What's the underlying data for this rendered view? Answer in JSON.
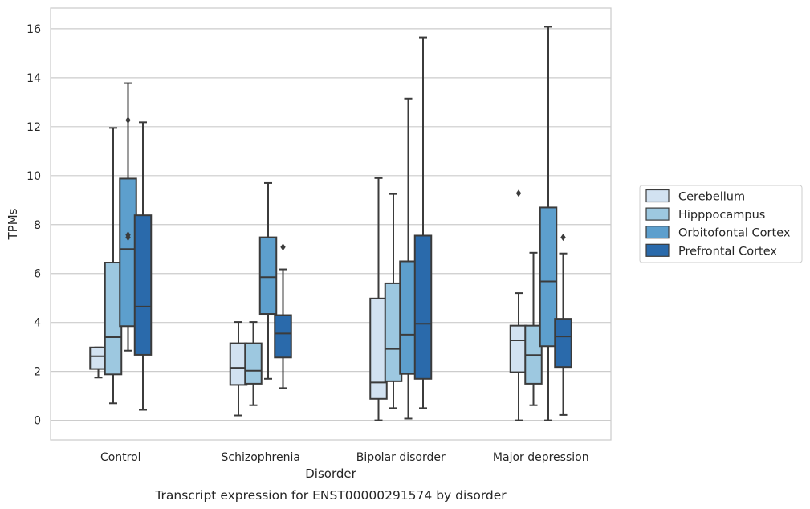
{
  "chart_data": {
    "type": "box",
    "caption": "Transcript expression for ENST00000291574 by disorder",
    "xlabel": "Disorder",
    "ylabel": "TPMs",
    "ylim": [
      -0.8,
      16.85
    ],
    "yticks": [
      0,
      2,
      4,
      6,
      8,
      10,
      12,
      14,
      16
    ],
    "grid": "horizontal",
    "legend_position": "right",
    "categories": [
      "Control",
      "Schizophrenia",
      "Bipolar disorder",
      "Major depression"
    ],
    "series": [
      {
        "name": "Cerebellum",
        "color": "#d2e2f1",
        "boxes": [
          {
            "low": 1.75,
            "q1": 2.1,
            "median": 2.62,
            "q3": 2.98,
            "high": 2.98,
            "outliers": []
          },
          {
            "low": 0.2,
            "q1": 1.45,
            "median": 2.15,
            "q3": 3.15,
            "high": 4.02,
            "outliers": []
          },
          {
            "low": 0.0,
            "q1": 0.88,
            "median": 1.55,
            "q3": 4.98,
            "high": 9.9,
            "outliers": []
          },
          {
            "low": 0.0,
            "q1": 1.97,
            "median": 3.27,
            "q3": 3.87,
            "high": 5.2,
            "outliers": [
              9.28
            ]
          }
        ]
      },
      {
        "name": "Hipppocampus",
        "color": "#9dc8e0",
        "boxes": [
          {
            "low": 0.7,
            "q1": 1.88,
            "median": 3.4,
            "q3": 6.45,
            "high": 11.95,
            "outliers": []
          },
          {
            "low": 0.62,
            "q1": 1.5,
            "median": 2.03,
            "q3": 3.15,
            "high": 4.02,
            "outliers": []
          },
          {
            "low": 0.5,
            "q1": 1.6,
            "median": 2.92,
            "q3": 5.6,
            "high": 9.25,
            "outliers": []
          },
          {
            "low": 0.62,
            "q1": 1.5,
            "median": 2.67,
            "q3": 3.87,
            "high": 6.85,
            "outliers": []
          }
        ]
      },
      {
        "name": "Orbitofontal Cortex",
        "color": "#5d9fcd",
        "boxes": [
          {
            "low": 2.85,
            "q1": 3.85,
            "median": 7.0,
            "q3": 9.88,
            "high": 13.78,
            "outliers": [
              7.48,
              7.58,
              12.27
            ]
          },
          {
            "low": 1.7,
            "q1": 4.35,
            "median": 5.85,
            "q3": 7.48,
            "high": 9.7,
            "outliers": []
          },
          {
            "low": 0.07,
            "q1": 1.9,
            "median": 3.5,
            "q3": 6.5,
            "high": 13.15,
            "outliers": []
          },
          {
            "low": 0.0,
            "q1": 3.03,
            "median": 5.68,
            "q3": 8.7,
            "high": 16.08,
            "outliers": []
          }
        ]
      },
      {
        "name": "Prefrontal Cortex",
        "color": "#2a6aab",
        "boxes": [
          {
            "low": 0.43,
            "q1": 2.68,
            "median": 4.65,
            "q3": 8.38,
            "high": 12.18,
            "outliers": []
          },
          {
            "low": 1.32,
            "q1": 2.57,
            "median": 3.55,
            "q3": 4.3,
            "high": 6.17,
            "outliers": [
              7.08
            ]
          },
          {
            "low": 0.5,
            "q1": 1.7,
            "median": 3.95,
            "q3": 7.55,
            "high": 15.65,
            "outliers": []
          },
          {
            "low": 0.22,
            "q1": 2.18,
            "median": 3.43,
            "q3": 4.15,
            "high": 6.82,
            "outliers": [
              7.48
            ]
          }
        ]
      }
    ]
  }
}
